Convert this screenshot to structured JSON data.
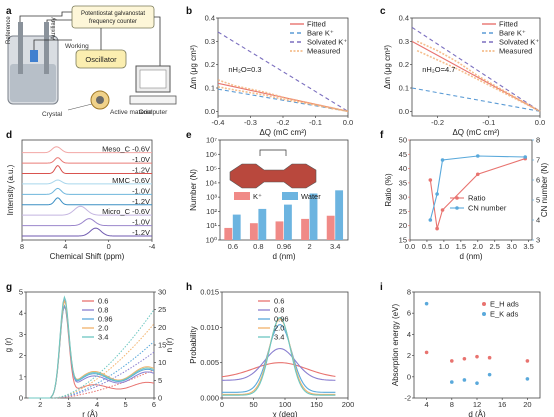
{
  "panels": {
    "a": {
      "letter": "a",
      "labels": {
        "reference": "Reference",
        "auxiliary": "Auxiliary",
        "working": "Working",
        "potentiostat": "Potentiostat galvanostat",
        "frequency_counter": "frequency counter",
        "oscillator": "Oscillator",
        "computer": "Computer",
        "crystal": "Crystal",
        "active_material": "Active material"
      }
    },
    "b": {
      "letter": "b"
    },
    "c": {
      "letter": "c"
    },
    "d": {
      "letter": "d",
      "sample_labels": [
        "Meso_C -0.6V",
        "-1.0V",
        "-1.2V",
        "MMC -0.6V",
        "-1.0V",
        "-1.2V",
        "Micro_C -0.6V",
        "-1.0V",
        "-1.2V"
      ]
    },
    "e": {
      "letter": "e"
    },
    "f": {
      "letter": "f"
    },
    "g": {
      "letter": "g"
    },
    "h": {
      "letter": "h"
    },
    "i": {
      "letter": "i"
    }
  },
  "chart_data": [
    {
      "id": "b",
      "type": "line",
      "xlabel": "ΔQ (mC cm²)",
      "ylabel": "Δm (μg cm²)",
      "annotation": "nH₂O=0.3",
      "xlim": [
        -0.4,
        0.0
      ],
      "ylim": [
        -0.02,
        0.4
      ],
      "xticks": [
        "-0.4",
        "-0.3",
        "-0.2",
        "-0.1",
        "0.0"
      ],
      "yticks": [
        "0.0",
        "0.1",
        "0.2",
        "0.3",
        "0.4"
      ],
      "legend": [
        "Fitted",
        "Bare K⁺",
        "Solvated K⁺",
        "Measured"
      ],
      "series": [
        {
          "name": "Fitted",
          "color": "#e8736f",
          "dash": "",
          "x": [
            -0.4,
            0.0
          ],
          "y": [
            0.12,
            0.0
          ]
        },
        {
          "name": "Bare K⁺",
          "color": "#5b9bd5",
          "dash": "4,3",
          "x": [
            -0.4,
            0.0
          ],
          "y": [
            0.095,
            0.0
          ]
        },
        {
          "name": "Solvated K⁺",
          "color": "#7b6fbf",
          "dash": "4,3",
          "x": [
            -0.4,
            0.0
          ],
          "y": [
            0.34,
            0.0
          ]
        },
        {
          "name": "Measured",
          "color": "#f3b37a",
          "dash": "2,1.5",
          "x": [
            -0.4,
            -0.35,
            -0.3,
            -0.25,
            -0.2,
            -0.15,
            -0.1,
            -0.05,
            0.0
          ],
          "y": [
            0.135,
            0.11,
            0.095,
            0.08,
            0.06,
            0.045,
            0.03,
            0.015,
            0.0
          ]
        },
        {
          "name": "Measured",
          "color": "#f3b37a",
          "dash": "2,1.5",
          "x": [
            -0.4,
            -0.35,
            -0.3,
            -0.25,
            -0.2,
            -0.15,
            -0.1,
            -0.05,
            0.0
          ],
          "y": [
            0.105,
            0.092,
            0.08,
            0.068,
            0.052,
            0.04,
            0.027,
            0.012,
            0.0
          ]
        }
      ]
    },
    {
      "id": "c",
      "type": "line",
      "xlabel": "ΔQ (mC cm²)",
      "ylabel": "Δm (μg cm²)",
      "annotation": "nH₂O=4.7",
      "xlim": [
        -0.25,
        0.0
      ],
      "ylim": [
        -0.02,
        0.4
      ],
      "xticks": [
        "-0.2",
        "-0.1",
        "0.0"
      ],
      "yticks": [
        "0.0",
        "0.1",
        "0.2",
        "0.3",
        "0.4"
      ],
      "legend": [
        "Fitted",
        "Bare K⁺",
        "Solvated K⁺",
        "Measured"
      ],
      "series": [
        {
          "name": "Fitted",
          "color": "#e8736f",
          "dash": "",
          "x": [
            -0.25,
            0.0
          ],
          "y": [
            0.3,
            0.0
          ]
        },
        {
          "name": "Bare K⁺",
          "color": "#5b9bd5",
          "dash": "4,3",
          "x": [
            -0.25,
            0.0
          ],
          "y": [
            0.1,
            0.0
          ]
        },
        {
          "name": "Solvated K⁺",
          "color": "#7b6fbf",
          "dash": "4,3",
          "x": [
            -0.25,
            0.0
          ],
          "y": [
            0.36,
            0.0
          ]
        },
        {
          "name": "Measured",
          "color": "#f3b37a",
          "dash": "2,1.5",
          "x": [
            -0.24,
            -0.2,
            -0.16,
            -0.12,
            -0.08,
            -0.04,
            0.0
          ],
          "y": [
            0.3,
            0.26,
            0.21,
            0.15,
            0.1,
            0.05,
            0.0
          ]
        },
        {
          "name": "Measured",
          "color": "#f3b37a",
          "dash": "2,1.5",
          "x": [
            -0.24,
            -0.2,
            -0.16,
            -0.12,
            -0.08,
            -0.04,
            0.0
          ],
          "y": [
            0.26,
            0.22,
            0.18,
            0.135,
            0.09,
            0.045,
            0.0
          ]
        }
      ]
    },
    {
      "id": "d",
      "type": "line",
      "xlabel": "Chemical Shift (ppm)",
      "ylabel": "Intensity (a.u.)",
      "xlim": [
        8,
        -4
      ],
      "xticks": [
        "8",
        "4",
        "0",
        "-4"
      ],
      "series": [
        {
          "name": "Meso_C -0.6V",
          "color": "#f2a7a5",
          "offset": 8,
          "peaks": [
            [
              4.7,
              0.5,
              0.5
            ],
            [
              5.1,
              0.4,
              0.2
            ]
          ]
        },
        {
          "name": "Meso_C -1.0V",
          "color": "#e97c78",
          "offset": 7,
          "peaks": [
            [
              4.7,
              0.4,
              0.55
            ]
          ]
        },
        {
          "name": "Meso_C -1.2V",
          "color": "#d9534f",
          "offset": 6,
          "peaks": [
            [
              4.7,
              0.35,
              0.8
            ]
          ]
        },
        {
          "name": "MMC -0.6V",
          "color": "#a9d6ec",
          "offset": 5,
          "peaks": [
            [
              4.7,
              0.5,
              0.4
            ]
          ]
        },
        {
          "name": "MMC -1.0V",
          "color": "#6fb6dc",
          "offset": 4,
          "peaks": [
            [
              4.7,
              0.45,
              0.6
            ]
          ]
        },
        {
          "name": "MMC -1.2V",
          "color": "#3b8fc4",
          "offset": 3,
          "peaks": [
            [
              4.7,
              0.4,
              0.7
            ]
          ]
        },
        {
          "name": "Micro_C -0.6V",
          "color": "#c4b5e0",
          "offset": 2,
          "peaks": [
            [
              2.6,
              0.8,
              0.9
            ]
          ]
        },
        {
          "name": "Micro_C -1.0V",
          "color": "#9b86cc",
          "offset": 1,
          "peaks": [
            [
              1.8,
              0.7,
              0.7
            ]
          ]
        },
        {
          "name": "Micro_C -1.2V",
          "color": "#6f5ab0",
          "offset": 0,
          "peaks": [
            [
              1.2,
              0.7,
              0.8
            ]
          ]
        }
      ]
    },
    {
      "id": "e",
      "type": "bar",
      "xlabel": "d (nm)",
      "ylabel": "Number (N)",
      "yscale": "log",
      "ylim": [
        1,
        10000000
      ],
      "yticks": [
        "10⁰",
        "10¹",
        "10²",
        "10³",
        "10⁴",
        "10⁵",
        "10⁶",
        "10⁷"
      ],
      "categories": [
        "0.6",
        "0.8",
        "0.96",
        "2",
        "3.4"
      ],
      "legend": [
        "K⁺",
        "Water"
      ],
      "series": [
        {
          "name": "K⁺",
          "color": "#f08a87",
          "values": [
            7,
            15,
            20,
            30,
            50
          ]
        },
        {
          "name": "Water",
          "color": "#6cb4e0",
          "values": [
            60,
            150,
            300,
            1800,
            3000
          ]
        }
      ]
    },
    {
      "id": "f",
      "type": "line",
      "xlabel": "d (nm)",
      "ylabel": "Ratio (%)",
      "ylabel_right": "CN number (N)",
      "xlim": [
        0,
        3.6
      ],
      "xticks": [
        "0.0",
        "0.5",
        "1.0",
        "1.5",
        "2.0",
        "2.5",
        "3.0",
        "3.5"
      ],
      "ylim": [
        15,
        50
      ],
      "yticks": [
        "15",
        "20",
        "25",
        "30",
        "35",
        "40",
        "45",
        "50"
      ],
      "ylim_right": [
        3,
        8
      ],
      "yticks_right": [
        "3",
        "4",
        "5",
        "6",
        "7",
        "8"
      ],
      "legend": [
        "Ratio",
        "CN number"
      ],
      "series": [
        {
          "name": "Ratio",
          "color": "#e8736f",
          "axis": "left",
          "x": [
            0.6,
            0.8,
            0.96,
            2.0,
            3.4
          ],
          "y": [
            36,
            19,
            25.5,
            38,
            43.5
          ]
        },
        {
          "name": "CN number",
          "color": "#5aa9db",
          "axis": "right",
          "x": [
            0.6,
            0.8,
            0.96,
            2.0,
            3.4
          ],
          "y": [
            4.0,
            5.3,
            7.0,
            7.2,
            7.15
          ]
        }
      ]
    },
    {
      "id": "g",
      "type": "line",
      "xlabel": "r (Å)",
      "ylabel": "g (r)",
      "ylabel_right": "n (r)",
      "xlim": [
        1.5,
        6.0
      ],
      "xticks": [
        "2",
        "3",
        "4",
        "5",
        "6"
      ],
      "ylim": [
        0,
        5
      ],
      "yticks": [
        "0",
        "1",
        "2",
        "3",
        "4",
        "5"
      ],
      "ylim_right": [
        0,
        30
      ],
      "yticks_right": [
        "0",
        "5",
        "10",
        "15",
        "20",
        "25",
        "30"
      ],
      "legend": [
        "0.6",
        "0.8",
        "0.96",
        "2.0",
        "3.4"
      ],
      "series": [
        {
          "name": "0.6",
          "color": "#e8736f",
          "peak": 4.2,
          "tail": 0.6,
          "n_end": 8
        },
        {
          "name": "0.8",
          "color": "#8a7fd0",
          "peak": 4.4,
          "tail": 1.0,
          "n_end": 13
        },
        {
          "name": "0.96",
          "color": "#5aa9db",
          "peak": 4.1,
          "tail": 1.1,
          "n_end": 16
        },
        {
          "name": "2.0",
          "color": "#f2b26b",
          "peak": 4.3,
          "tail": 1.2,
          "n_end": 21
        },
        {
          "name": "3.4",
          "color": "#6cc7c1",
          "peak": 4.5,
          "tail": 1.15,
          "n_end": 25
        }
      ]
    },
    {
      "id": "h",
      "type": "line",
      "xlabel": "χ (deg)",
      "ylabel": "Probability",
      "xlim": [
        0,
        200
      ],
      "xticks": [
        "0",
        "50",
        "100",
        "150",
        "200"
      ],
      "ylim": [
        0,
        0.015
      ],
      "yticks": [
        "0.000",
        "0.005",
        "0.010",
        "0.015"
      ],
      "legend": [
        "0.6",
        "0.8",
        "0.96",
        "2.0",
        "3.4"
      ],
      "series": [
        {
          "name": "0.6",
          "color": "#e8736f",
          "amp": 0.0022,
          "base": 0.0028,
          "width": 60
        },
        {
          "name": "0.8",
          "color": "#8a7fd0",
          "amp": 0.0045,
          "base": 0.0025,
          "width": 35
        },
        {
          "name": "0.96",
          "color": "#5aa9db",
          "amp": 0.0096,
          "base": 0.0008,
          "width": 26
        },
        {
          "name": "2.0",
          "color": "#f2b26b",
          "amp": 0.0107,
          "base": 0.0005,
          "width": 24
        },
        {
          "name": "3.4",
          "color": "#6cc7c1",
          "amp": 0.011,
          "base": 0.0004,
          "width": 23
        }
      ]
    },
    {
      "id": "i",
      "type": "scatter",
      "xlabel": "d (Å)",
      "ylabel": "Absorption energy (eV)",
      "xlim": [
        2,
        22
      ],
      "xticks": [
        "4",
        "8",
        "12",
        "16",
        "20"
      ],
      "ylim": [
        -2,
        8
      ],
      "yticks": [
        "-2",
        "0",
        "2",
        "4",
        "6",
        "8"
      ],
      "legend": [
        "E_H ads",
        "E_K ads"
      ],
      "series": [
        {
          "name": "E_H ads",
          "color": "#e8736f",
          "x": [
            4,
            8,
            10,
            12,
            14,
            20
          ],
          "y": [
            2.3,
            1.5,
            1.7,
            1.9,
            1.8,
            1.5
          ]
        },
        {
          "name": "E_K ads",
          "color": "#5aa9db",
          "x": [
            4,
            8,
            10,
            12,
            14,
            20
          ],
          "y": [
            6.9,
            -0.5,
            -0.3,
            -0.6,
            0.2,
            -0.2
          ]
        }
      ]
    }
  ]
}
